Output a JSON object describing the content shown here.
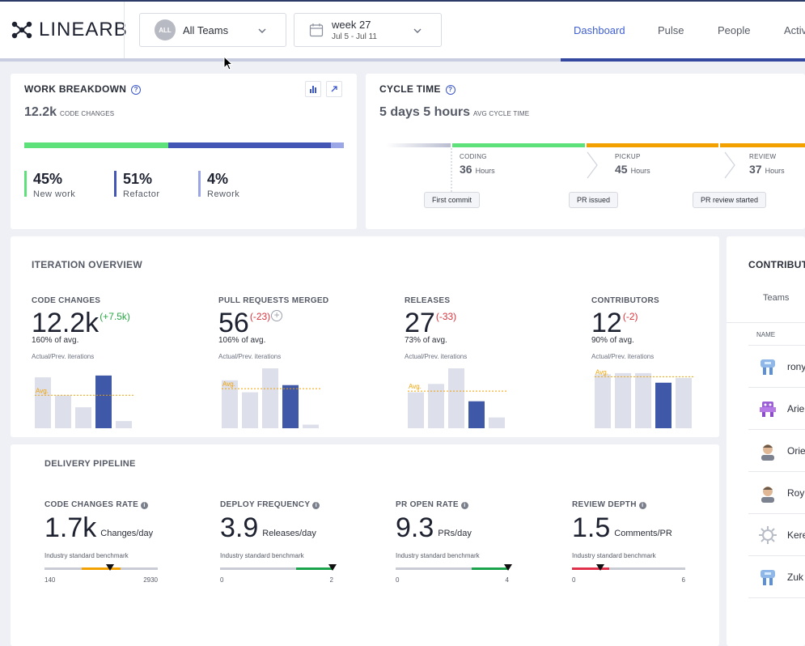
{
  "app": {
    "logo_text": "LINEARB"
  },
  "filters": {
    "team": {
      "badge": "ALL",
      "label": "All Teams"
    },
    "week": {
      "label": "week 27",
      "range": "Jul 5 - Jul 11"
    }
  },
  "nav": {
    "items": [
      {
        "label": "Dashboard",
        "active": true
      },
      {
        "label": "Pulse"
      },
      {
        "label": "People"
      },
      {
        "label": "Activ"
      }
    ]
  },
  "work_breakdown": {
    "title": "WORK BREAKDOWN",
    "stat_value": "12.2k",
    "stat_label": "CODE CHANGES",
    "bar_fractions": {
      "new_work": 0.45,
      "refactor": 0.51,
      "rework": 0.04
    },
    "items": [
      {
        "value": "45%",
        "label": "New work",
        "color": "#5ee07a"
      },
      {
        "value": "51%",
        "label": "Refactor",
        "color": "#4355b5"
      },
      {
        "value": "4%",
        "label": "Rework",
        "color": "#9aa6e6"
      }
    ]
  },
  "cycle_time": {
    "title": "CYCLE TIME",
    "stat_value": "5 days 5 hours",
    "stat_label": "AVG CYCLE TIME",
    "phases": [
      {
        "label": "CODING",
        "value": "36",
        "unit": "Hours",
        "color": "#5ee07a"
      },
      {
        "label": "PICKUP",
        "value": "45",
        "unit": "Hours",
        "color": "#f2a100"
      },
      {
        "label": "REVIEW",
        "value": "37",
        "unit": "Hours",
        "color": "#f2a100"
      }
    ],
    "events": [
      "First commit",
      "PR issued",
      "PR review started"
    ]
  },
  "iteration_overview": {
    "title": "ITERATION OVERVIEW",
    "avg_label": "Avg.",
    "metrics": [
      {
        "title": "CODE CHANGES",
        "value": "12.2k",
        "delta": "(+7.5k)",
        "avg": "160% of avg.",
        "note": "Actual/Prev. iterations",
        "bars": [
          0.85,
          0.55,
          0.35,
          0.88,
          0.12
        ],
        "avg_level": 0.55
      },
      {
        "title": "PULL REQUESTS MERGED",
        "value": "56",
        "delta": "(-23)",
        "avg": "106% of avg.",
        "note": "Actual/Prev. iterations",
        "bars": [
          0.8,
          0.6,
          1.0,
          0.72,
          0.06
        ],
        "avg_level": 0.66
      },
      {
        "title": "RELEASES",
        "value": "27",
        "delta": "(-33)",
        "avg": "73% of avg.",
        "note": "Actual/Prev. iterations",
        "bars": [
          0.6,
          0.74,
          1.0,
          0.45,
          0.18
        ],
        "avg_level": 0.62
      },
      {
        "title": "CONTRIBUTORS",
        "value": "12",
        "delta": "(-2)",
        "avg": "90% of avg.",
        "note": "Actual/Prev. iterations",
        "bars": [
          0.9,
          0.92,
          0.92,
          0.76,
          0.84
        ],
        "avg_level": 0.86
      }
    ]
  },
  "delivery_pipeline": {
    "title": "DELIVERY PIPELINE",
    "metrics": [
      {
        "title": "CODE CHANGES RATE",
        "value": "1.7k",
        "unit": "Changes/day",
        "bench": "Industry standard benchmark",
        "min": "140",
        "max": "2930",
        "marker": 0.58,
        "hl_start": 0.33,
        "hl_end": 0.67,
        "hl_color": "#f2a100"
      },
      {
        "title": "DEPLOY FREQUENCY",
        "value": "3.9",
        "unit": "Releases/day",
        "bench": "Industry standard benchmark",
        "min": "0",
        "max": "2",
        "marker": 0.99,
        "hl_start": 0.67,
        "hl_end": 1.0,
        "hl_color": "#1aa34a"
      },
      {
        "title": "PR OPEN RATE",
        "value": "9.3",
        "unit": "PRs/day",
        "bench": "Industry standard benchmark",
        "min": "0",
        "max": "4",
        "marker": 0.99,
        "hl_start": 0.67,
        "hl_end": 1.0,
        "hl_color": "#1aa34a"
      },
      {
        "title": "REVIEW DEPTH",
        "value": "1.5",
        "unit": "Comments/PR",
        "bench": "Industry standard benchmark",
        "min": "0",
        "max": "6",
        "marker": 0.25,
        "hl_start": 0.0,
        "hl_end": 0.33,
        "hl_color": "#e0304a"
      }
    ]
  },
  "contributors": {
    "title": "CONTRIBUTORS",
    "tab": "Teams",
    "column": "NAME",
    "rows": [
      {
        "name": "rony",
        "avatar": "robot-blue-avatar"
      },
      {
        "name": "Arie",
        "avatar": "robot-purple-avatar"
      },
      {
        "name": "Orie",
        "avatar": "person-avatar"
      },
      {
        "name": "Roy",
        "avatar": "person-avatar"
      },
      {
        "name": "Kere",
        "avatar": "gear-avatar"
      },
      {
        "name": "Zuk",
        "avatar": "robot-blue-avatar"
      }
    ]
  }
}
